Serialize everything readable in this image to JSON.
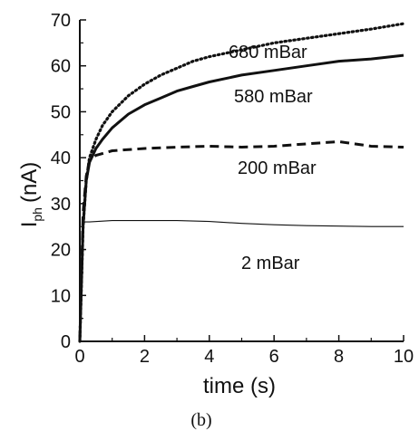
{
  "chart_data": {
    "type": "line",
    "title": "",
    "xlabel": "time (s)",
    "ylabel": "I",
    "ylabel_subscript": "ph",
    "ylabel_unit": "(nA)",
    "xlim": [
      0,
      10
    ],
    "ylim": [
      0,
      70
    ],
    "xticks": [
      0,
      2,
      4,
      6,
      8,
      10
    ],
    "yticks": [
      0,
      10,
      20,
      30,
      40,
      50,
      60,
      70
    ],
    "grid": false,
    "series": [
      {
        "name": "680 mBar",
        "style": "dotted",
        "x": [
          0,
          0.1,
          0.2,
          0.3,
          0.5,
          0.7,
          1,
          1.5,
          2,
          2.5,
          3,
          3.5,
          4,
          5,
          6,
          7,
          8,
          9,
          10
        ],
        "y": [
          0,
          25,
          35,
          40,
          44,
          47,
          50,
          53.5,
          56,
          58,
          59.5,
          61,
          62,
          63.5,
          65,
          66,
          67,
          68,
          69.2
        ]
      },
      {
        "name": "580 mBar",
        "style": "solid",
        "x": [
          0,
          0.1,
          0.2,
          0.3,
          0.5,
          0.7,
          1,
          1.5,
          2,
          2.5,
          3,
          3.5,
          4,
          5,
          6,
          7,
          8,
          9,
          10
        ],
        "y": [
          0,
          25,
          35,
          39,
          42,
          44,
          46.5,
          49.5,
          51.5,
          53,
          54.5,
          55.5,
          56.5,
          58,
          59,
          60,
          61,
          61.5,
          62.3
        ]
      },
      {
        "name": "200 mBar",
        "style": "dashed",
        "x": [
          0,
          0.1,
          0.2,
          0.3,
          0.5,
          1,
          2,
          3,
          4,
          5,
          6,
          7,
          8,
          9,
          10
        ],
        "y": [
          0,
          28,
          36,
          39.5,
          40.5,
          41.5,
          42,
          42.3,
          42.5,
          42.3,
          42.5,
          43,
          43.5,
          42.5,
          42.3
        ]
      },
      {
        "name": "2 mBar",
        "style": "thin",
        "x": [
          0,
          0.05,
          0.1,
          0.15,
          0.3,
          1,
          2,
          3,
          4,
          5,
          6,
          7,
          8,
          9,
          10
        ],
        "y": [
          0,
          15,
          25,
          26,
          26,
          26.3,
          26.3,
          26.3,
          26.1,
          25.7,
          25.4,
          25.2,
          25.1,
          25,
          25
        ]
      }
    ],
    "caption": "(b)"
  }
}
